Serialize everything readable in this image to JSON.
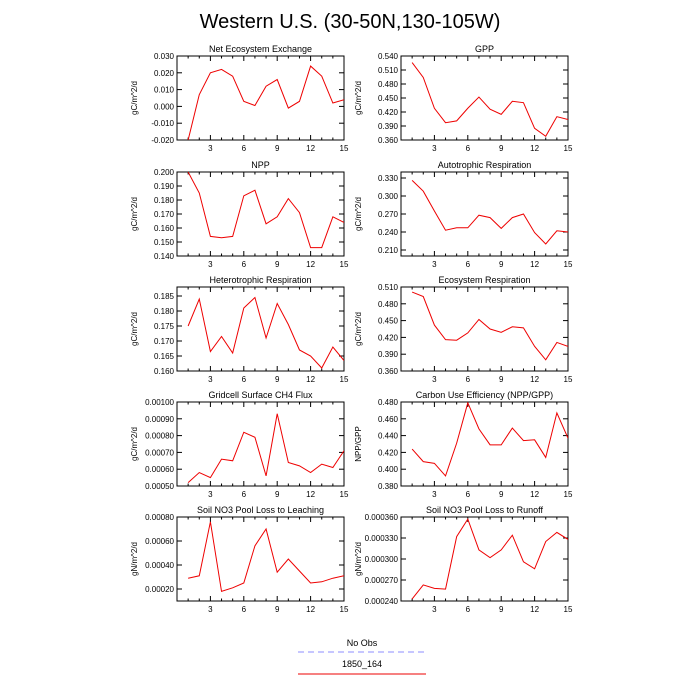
{
  "title": "Western U.S. (30-50N,130-105W)",
  "legend": {
    "position": "bottom-center",
    "entries": [
      {
        "label": "No Obs",
        "color": "#8c8cff",
        "style": "dashed"
      },
      {
        "label": "1850_164",
        "color": "#ee0000",
        "style": "solid"
      }
    ]
  },
  "line_color": "#ee0000",
  "chart_data": [
    {
      "type": "line",
      "title": "Net Ecosystem Exchange",
      "ylabel": "gC/m^2/d",
      "x": [
        1,
        2,
        3,
        4,
        5,
        6,
        7,
        8,
        9,
        10,
        11,
        12,
        13,
        14,
        15
      ],
      "values": [
        -0.02,
        0.007,
        0.02,
        0.022,
        0.018,
        0.003,
        0.0005,
        0.012,
        0.016,
        -0.001,
        0.003,
        0.024,
        0.018,
        0.002,
        0.004
      ],
      "xlim": [
        0,
        15
      ],
      "ylim": [
        -0.02,
        0.03
      ],
      "xticks": [
        3,
        6,
        9,
        12,
        15
      ],
      "yticks": [
        -0.02,
        -0.01,
        0.0,
        0.01,
        0.02,
        0.03
      ],
      "ytick_labels": [
        "-0.020",
        "-0.010",
        "0.000",
        "0.010",
        "0.020",
        "0.030"
      ]
    },
    {
      "type": "line",
      "title": "GPP",
      "ylabel": "gC/m^2/d",
      "x": [
        1,
        2,
        3,
        4,
        5,
        6,
        7,
        8,
        9,
        10,
        11,
        12,
        13,
        14,
        15
      ],
      "values": [
        0.526,
        0.494,
        0.428,
        0.397,
        0.401,
        0.428,
        0.452,
        0.426,
        0.415,
        0.443,
        0.44,
        0.385,
        0.368,
        0.41,
        0.404
      ],
      "xlim": [
        0,
        15
      ],
      "ylim": [
        0.36,
        0.54
      ],
      "xticks": [
        3,
        6,
        9,
        12,
        15
      ],
      "yticks": [
        0.36,
        0.39,
        0.42,
        0.45,
        0.48,
        0.51,
        0.54
      ],
      "ytick_labels": [
        "0.360",
        "0.390",
        "0.420",
        "0.450",
        "0.480",
        "0.510",
        "0.540"
      ]
    },
    {
      "type": "line",
      "title": "NPP",
      "ylabel": "gC/m^2/d",
      "x": [
        1,
        2,
        3,
        4,
        5,
        6,
        7,
        8,
        9,
        10,
        11,
        12,
        13,
        14,
        15
      ],
      "values": [
        0.2,
        0.185,
        0.154,
        0.153,
        0.154,
        0.183,
        0.187,
        0.163,
        0.168,
        0.181,
        0.171,
        0.146,
        0.146,
        0.168,
        0.164
      ],
      "xlim": [
        0,
        15
      ],
      "ylim": [
        0.14,
        0.2
      ],
      "xticks": [
        3,
        6,
        9,
        12,
        15
      ],
      "yticks": [
        0.14,
        0.15,
        0.16,
        0.17,
        0.18,
        0.19,
        0.2
      ],
      "ytick_labels": [
        "0.140",
        "0.150",
        "0.160",
        "0.170",
        "0.180",
        "0.190",
        "0.200"
      ]
    },
    {
      "type": "line",
      "title": "Autotrophic Respiration",
      "ylabel": "gC/m^2/d",
      "x": [
        1,
        2,
        3,
        4,
        5,
        6,
        7,
        8,
        9,
        10,
        11,
        12,
        13,
        14,
        15
      ],
      "values": [
        0.326,
        0.308,
        0.275,
        0.243,
        0.247,
        0.247,
        0.268,
        0.264,
        0.246,
        0.264,
        0.27,
        0.239,
        0.22,
        0.242,
        0.24
      ],
      "xlim": [
        0,
        15
      ],
      "ylim": [
        0.2,
        0.34
      ],
      "xticks": [
        3,
        6,
        9,
        12,
        15
      ],
      "yticks": [
        0.21,
        0.24,
        0.27,
        0.3,
        0.33
      ],
      "ytick_labels": [
        "0.210",
        "0.240",
        "0.270",
        "0.300",
        "0.330"
      ]
    },
    {
      "type": "line",
      "title": "Heterotrophic Respiration",
      "ylabel": "gC/m^2/d",
      "x": [
        1,
        2,
        3,
        4,
        5,
        6,
        7,
        8,
        9,
        10,
        11,
        12,
        13,
        14,
        15
      ],
      "values": [
        0.175,
        0.184,
        0.1665,
        0.1715,
        0.166,
        0.181,
        0.1845,
        0.171,
        0.1825,
        0.1755,
        0.167,
        0.165,
        0.161,
        0.168,
        0.1635
      ],
      "xlim": [
        0,
        15
      ],
      "ylim": [
        0.16,
        0.188
      ],
      "xticks": [
        3,
        6,
        9,
        12,
        15
      ],
      "yticks": [
        0.16,
        0.165,
        0.17,
        0.175,
        0.18,
        0.185
      ],
      "ytick_labels": [
        "0.160",
        "0.165",
        "0.170",
        "0.175",
        "0.180",
        "0.185"
      ]
    },
    {
      "type": "line",
      "title": "Ecosystem Respiration",
      "ylabel": "gC/m^2/d",
      "x": [
        1,
        2,
        3,
        4,
        5,
        6,
        7,
        8,
        9,
        10,
        11,
        12,
        13,
        14,
        15
      ],
      "values": [
        0.501,
        0.493,
        0.442,
        0.416,
        0.415,
        0.428,
        0.452,
        0.435,
        0.429,
        0.439,
        0.437,
        0.404,
        0.38,
        0.411,
        0.404
      ],
      "xlim": [
        0,
        15
      ],
      "ylim": [
        0.36,
        0.51
      ],
      "xticks": [
        3,
        6,
        9,
        12,
        15
      ],
      "yticks": [
        0.36,
        0.39,
        0.42,
        0.45,
        0.48,
        0.51
      ],
      "ytick_labels": [
        "0.360",
        "0.390",
        "0.420",
        "0.450",
        "0.480",
        "0.510"
      ]
    },
    {
      "type": "line",
      "title": "Gridcell Surface CH4 Flux",
      "ylabel": "gC/m^2/d",
      "x": [
        1,
        2,
        3,
        4,
        5,
        6,
        7,
        8,
        9,
        10,
        11,
        12,
        13,
        14,
        15
      ],
      "values": [
        0.00052,
        0.00058,
        0.00055,
        0.00066,
        0.00065,
        0.00082,
        0.00079,
        0.00056,
        0.00093,
        0.00064,
        0.00062,
        0.00058,
        0.00063,
        0.00061,
        0.00071
      ],
      "xlim": [
        0,
        15
      ],
      "ylim": [
        0.0005,
        0.001
      ],
      "xticks": [
        3,
        6,
        9,
        12,
        15
      ],
      "yticks": [
        0.0005,
        0.0006,
        0.0007,
        0.0008,
        0.0009,
        0.001
      ],
      "ytick_labels": [
        "0.00050",
        "0.00060",
        "0.00070",
        "0.00080",
        "0.00090",
        "0.00100"
      ]
    },
    {
      "type": "line",
      "title": "Carbon Use Efficiency (NPP/GPP)",
      "ylabel": "NPP/GPP",
      "x": [
        1,
        2,
        3,
        4,
        5,
        6,
        7,
        8,
        9,
        10,
        11,
        12,
        13,
        14,
        15
      ],
      "values": [
        0.424,
        0.409,
        0.407,
        0.392,
        0.431,
        0.479,
        0.448,
        0.429,
        0.429,
        0.449,
        0.434,
        0.435,
        0.414,
        0.467,
        0.437
      ],
      "xlim": [
        0,
        15
      ],
      "ylim": [
        0.38,
        0.48
      ],
      "xticks": [
        3,
        6,
        9,
        12,
        15
      ],
      "yticks": [
        0.38,
        0.4,
        0.42,
        0.44,
        0.46,
        0.48
      ],
      "ytick_labels": [
        "0.380",
        "0.400",
        "0.420",
        "0.440",
        "0.460",
        "0.480"
      ]
    },
    {
      "type": "line",
      "title": "Soil NO3 Pool Loss to Leaching",
      "ylabel": "gN/m^2/d",
      "x": [
        1,
        2,
        3,
        4,
        5,
        6,
        7,
        8,
        9,
        10,
        11,
        12,
        13,
        14,
        15
      ],
      "values": [
        0.00029,
        0.00031,
        0.00076,
        0.00018,
        0.00021,
        0.00025,
        0.00056,
        0.0007,
        0.00034,
        0.00045,
        0.00035,
        0.00025,
        0.00026,
        0.00029,
        0.00031
      ],
      "xlim": [
        0,
        15
      ],
      "ylim": [
        0.0001,
        0.0008
      ],
      "xticks": [
        3,
        6,
        9,
        12,
        15
      ],
      "yticks": [
        0.0002,
        0.0004,
        0.0006,
        0.0008
      ],
      "ytick_labels": [
        "0.00020",
        "0.00040",
        "0.00060",
        "0.00080"
      ]
    },
    {
      "type": "line",
      "title": "Soil NO3 Pool Loss to Runoff",
      "ylabel": "gN/m^2/d",
      "x": [
        1,
        2,
        3,
        4,
        5,
        6,
        7,
        8,
        9,
        10,
        11,
        12,
        13,
        14,
        15
      ],
      "values": [
        0.000243,
        0.000263,
        0.000258,
        0.000257,
        0.000332,
        0.000357,
        0.000313,
        0.000302,
        0.000313,
        0.000334,
        0.000296,
        0.000286,
        0.000325,
        0.000338,
        0.000328
      ],
      "xlim": [
        0,
        15
      ],
      "ylim": [
        0.00024,
        0.00036
      ],
      "xticks": [
        3,
        6,
        9,
        12,
        15
      ],
      "yticks": [
        0.00024,
        0.00027,
        0.0003,
        0.00033,
        0.00036
      ],
      "ytick_labels": [
        "0.000240",
        "0.000270",
        "0.000300",
        "0.000330",
        "0.000360"
      ]
    }
  ]
}
